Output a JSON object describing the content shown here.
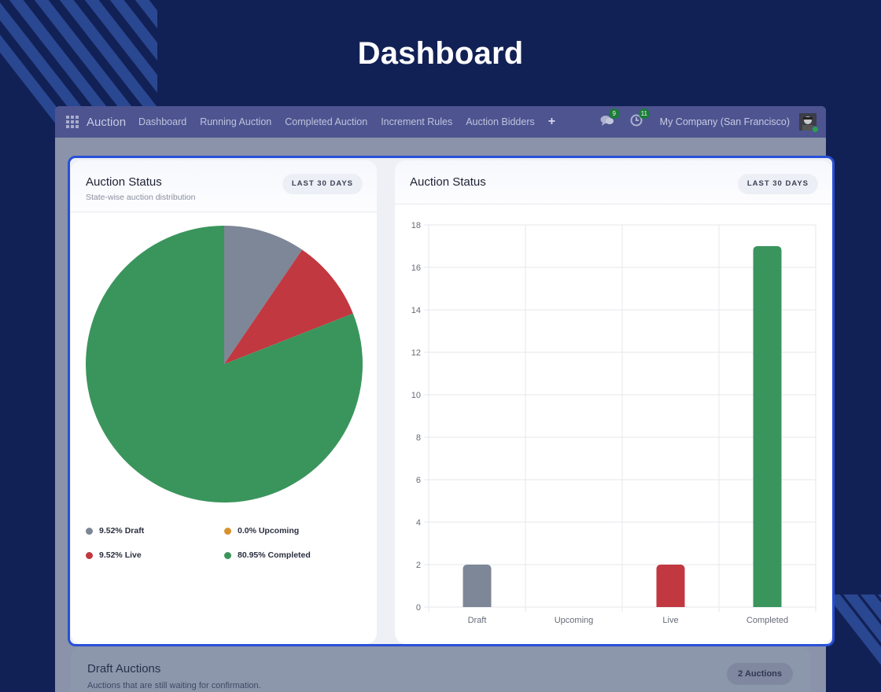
{
  "page": {
    "title": "Dashboard"
  },
  "navbar": {
    "brand": "Auction",
    "items": [
      "Dashboard",
      "Running Auction",
      "Completed Auction",
      "Increment Rules",
      "Auction Bidders"
    ],
    "plus": "+",
    "messages_badge": "9",
    "activities_badge": "11",
    "company": "My Company (San Francisco)"
  },
  "pie_card": {
    "title": "Auction Status",
    "subtitle": "State-wise auction distribution",
    "range_label": "LAST 30 DAYS",
    "legend": [
      {
        "label": "9.52% Draft",
        "color": "#7d8797"
      },
      {
        "label": "0.0% Upcoming",
        "color": "#d7922e"
      },
      {
        "label": "9.52% Live",
        "color": "#c13840"
      },
      {
        "label": "80.95% Completed",
        "color": "#3a955c"
      }
    ]
  },
  "bar_card": {
    "title": "Auction Status",
    "range_label": "LAST 30 DAYS"
  },
  "draft_card": {
    "title": "Draft Auctions",
    "subtitle": "Auctions that are still waiting for confirmation.",
    "count_label": "2 Auctions"
  },
  "chart_data": [
    {
      "type": "pie",
      "categories": [
        "Draft",
        "Upcoming",
        "Live",
        "Completed"
      ],
      "values": [
        9.52,
        0.0,
        9.52,
        80.95
      ],
      "colors": [
        "#7d8797",
        "#d7922e",
        "#c13840",
        "#3a955c"
      ],
      "title": "Auction Status",
      "legend": "bottom"
    },
    {
      "type": "bar",
      "categories": [
        "Draft",
        "Upcoming",
        "Live",
        "Completed"
      ],
      "values": [
        2,
        0,
        2,
        17
      ],
      "colors": [
        "#7d8797",
        "#d7922e",
        "#c13840",
        "#3a955c"
      ],
      "title": "Auction Status",
      "xlabel": "",
      "ylabel": "",
      "ylim": [
        0,
        18
      ],
      "yticks": [
        "0",
        "2",
        "4",
        "6",
        "8",
        "10",
        "12",
        "14",
        "16",
        "18"
      ],
      "grid": true
    }
  ]
}
